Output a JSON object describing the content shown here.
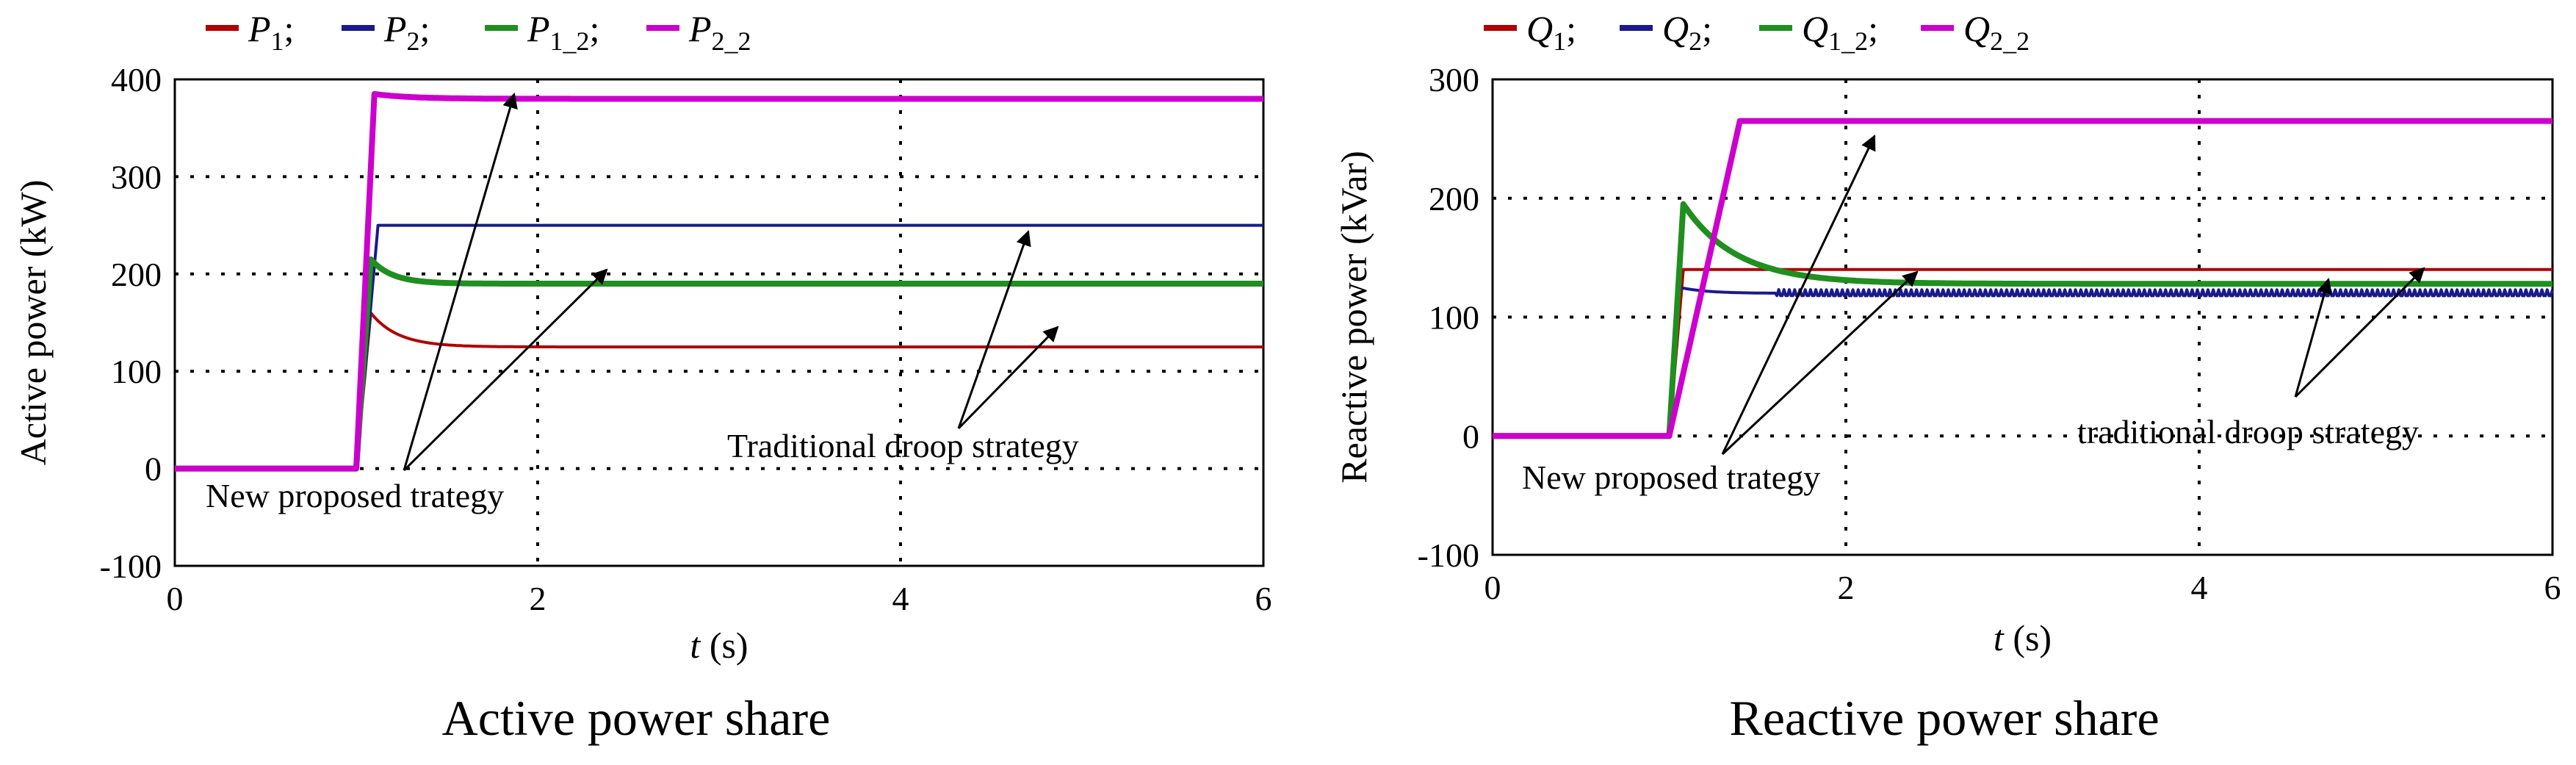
{
  "colors": {
    "series_1": "#b00000",
    "series_2": "#1a1a8c",
    "series_3": "#1f8f1f",
    "series_4": "#cc00cc",
    "grid": "#000000",
    "background": "#ffffff"
  },
  "chart_data": [
    {
      "type": "line",
      "title": "Active power share",
      "xlabel_var": "t",
      "xlabel_unit": "(s)",
      "ylabel": "Active power (kW)",
      "xlim": [
        0,
        6
      ],
      "ylim": [
        -100,
        400
      ],
      "xticks": [
        0,
        2,
        4,
        6
      ],
      "yticks": [
        -100,
        0,
        100,
        200,
        300,
        400
      ],
      "grid": true,
      "legend_position": "top-left",
      "step_time": 1.0,
      "series": [
        {
          "name": "P1",
          "base": "P",
          "sub": "1",
          "steady": 125,
          "overshoot": 160,
          "rise": 0.08,
          "decay": 0.15
        },
        {
          "name": "P2",
          "base": "P",
          "sub": "2",
          "steady": 250,
          "overshoot": 250,
          "rise": 0.12,
          "decay": 0.15
        },
        {
          "name": "P1_2",
          "base": "P",
          "sub": "1_2",
          "steady": 190,
          "overshoot": 215,
          "rise": 0.08,
          "decay": 0.12
        },
        {
          "name": "P2_2",
          "base": "P",
          "sub": "2_2",
          "steady": 380,
          "overshoot": 385,
          "rise": 0.1,
          "decay": 0.2
        }
      ],
      "annotations": {
        "proposed": "New proposed trategy",
        "traditional": "Traditional droop strategy"
      }
    },
    {
      "type": "line",
      "title": "Reactive power share",
      "xlabel_var": "t",
      "xlabel_unit": "(s)",
      "ylabel": "Reactive power (kVar)",
      "xlim": [
        0,
        6
      ],
      "ylim": [
        -100,
        300
      ],
      "xticks": [
        0,
        2,
        4,
        6
      ],
      "yticks": [
        -100,
        0,
        100,
        200,
        300
      ],
      "grid": true,
      "legend_position": "top-left",
      "step_time": 1.0,
      "series": [
        {
          "name": "Q1",
          "base": "Q",
          "sub": "1",
          "steady": 140,
          "overshoot": 140,
          "rise": 0.08,
          "decay": 0.15
        },
        {
          "name": "Q2",
          "base": "Q",
          "sub": "2",
          "steady": 120,
          "overshoot": 125,
          "rise": 0.06,
          "decay": 0.15
        },
        {
          "name": "Q1_2",
          "base": "Q",
          "sub": "1_2",
          "steady": 128,
          "overshoot": 195,
          "rise": 0.08,
          "decay": 0.3
        },
        {
          "name": "Q2_2",
          "base": "Q",
          "sub": "2_2",
          "steady": 265,
          "overshoot": 265,
          "rise": 0.4,
          "decay": 0.2
        }
      ],
      "annotations": {
        "proposed": "New proposed trategy",
        "traditional": "traditional droop strategy"
      }
    }
  ]
}
